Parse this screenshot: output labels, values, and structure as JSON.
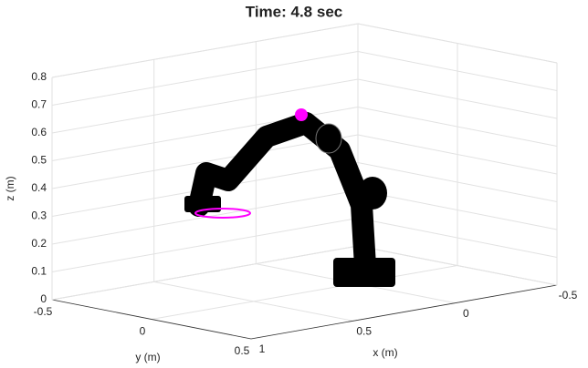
{
  "chart_data": {
    "type": "3d-axes",
    "title": "Time: 4.8 sec",
    "xlabel": "x (m)",
    "ylabel": "y (m)",
    "zlabel": "z (m)",
    "xlim": [
      -0.5,
      1
    ],
    "ylim": [
      -0.5,
      0.5
    ],
    "zlim": [
      0,
      0.8
    ],
    "xticks": [
      -0.5,
      0,
      0.5,
      1
    ],
    "yticks": [
      -0.5,
      0,
      0.5
    ],
    "zticks": [
      0,
      0.1,
      0.2,
      0.3,
      0.4,
      0.5,
      0.6,
      0.7,
      0.8
    ],
    "grid": true
  }
}
